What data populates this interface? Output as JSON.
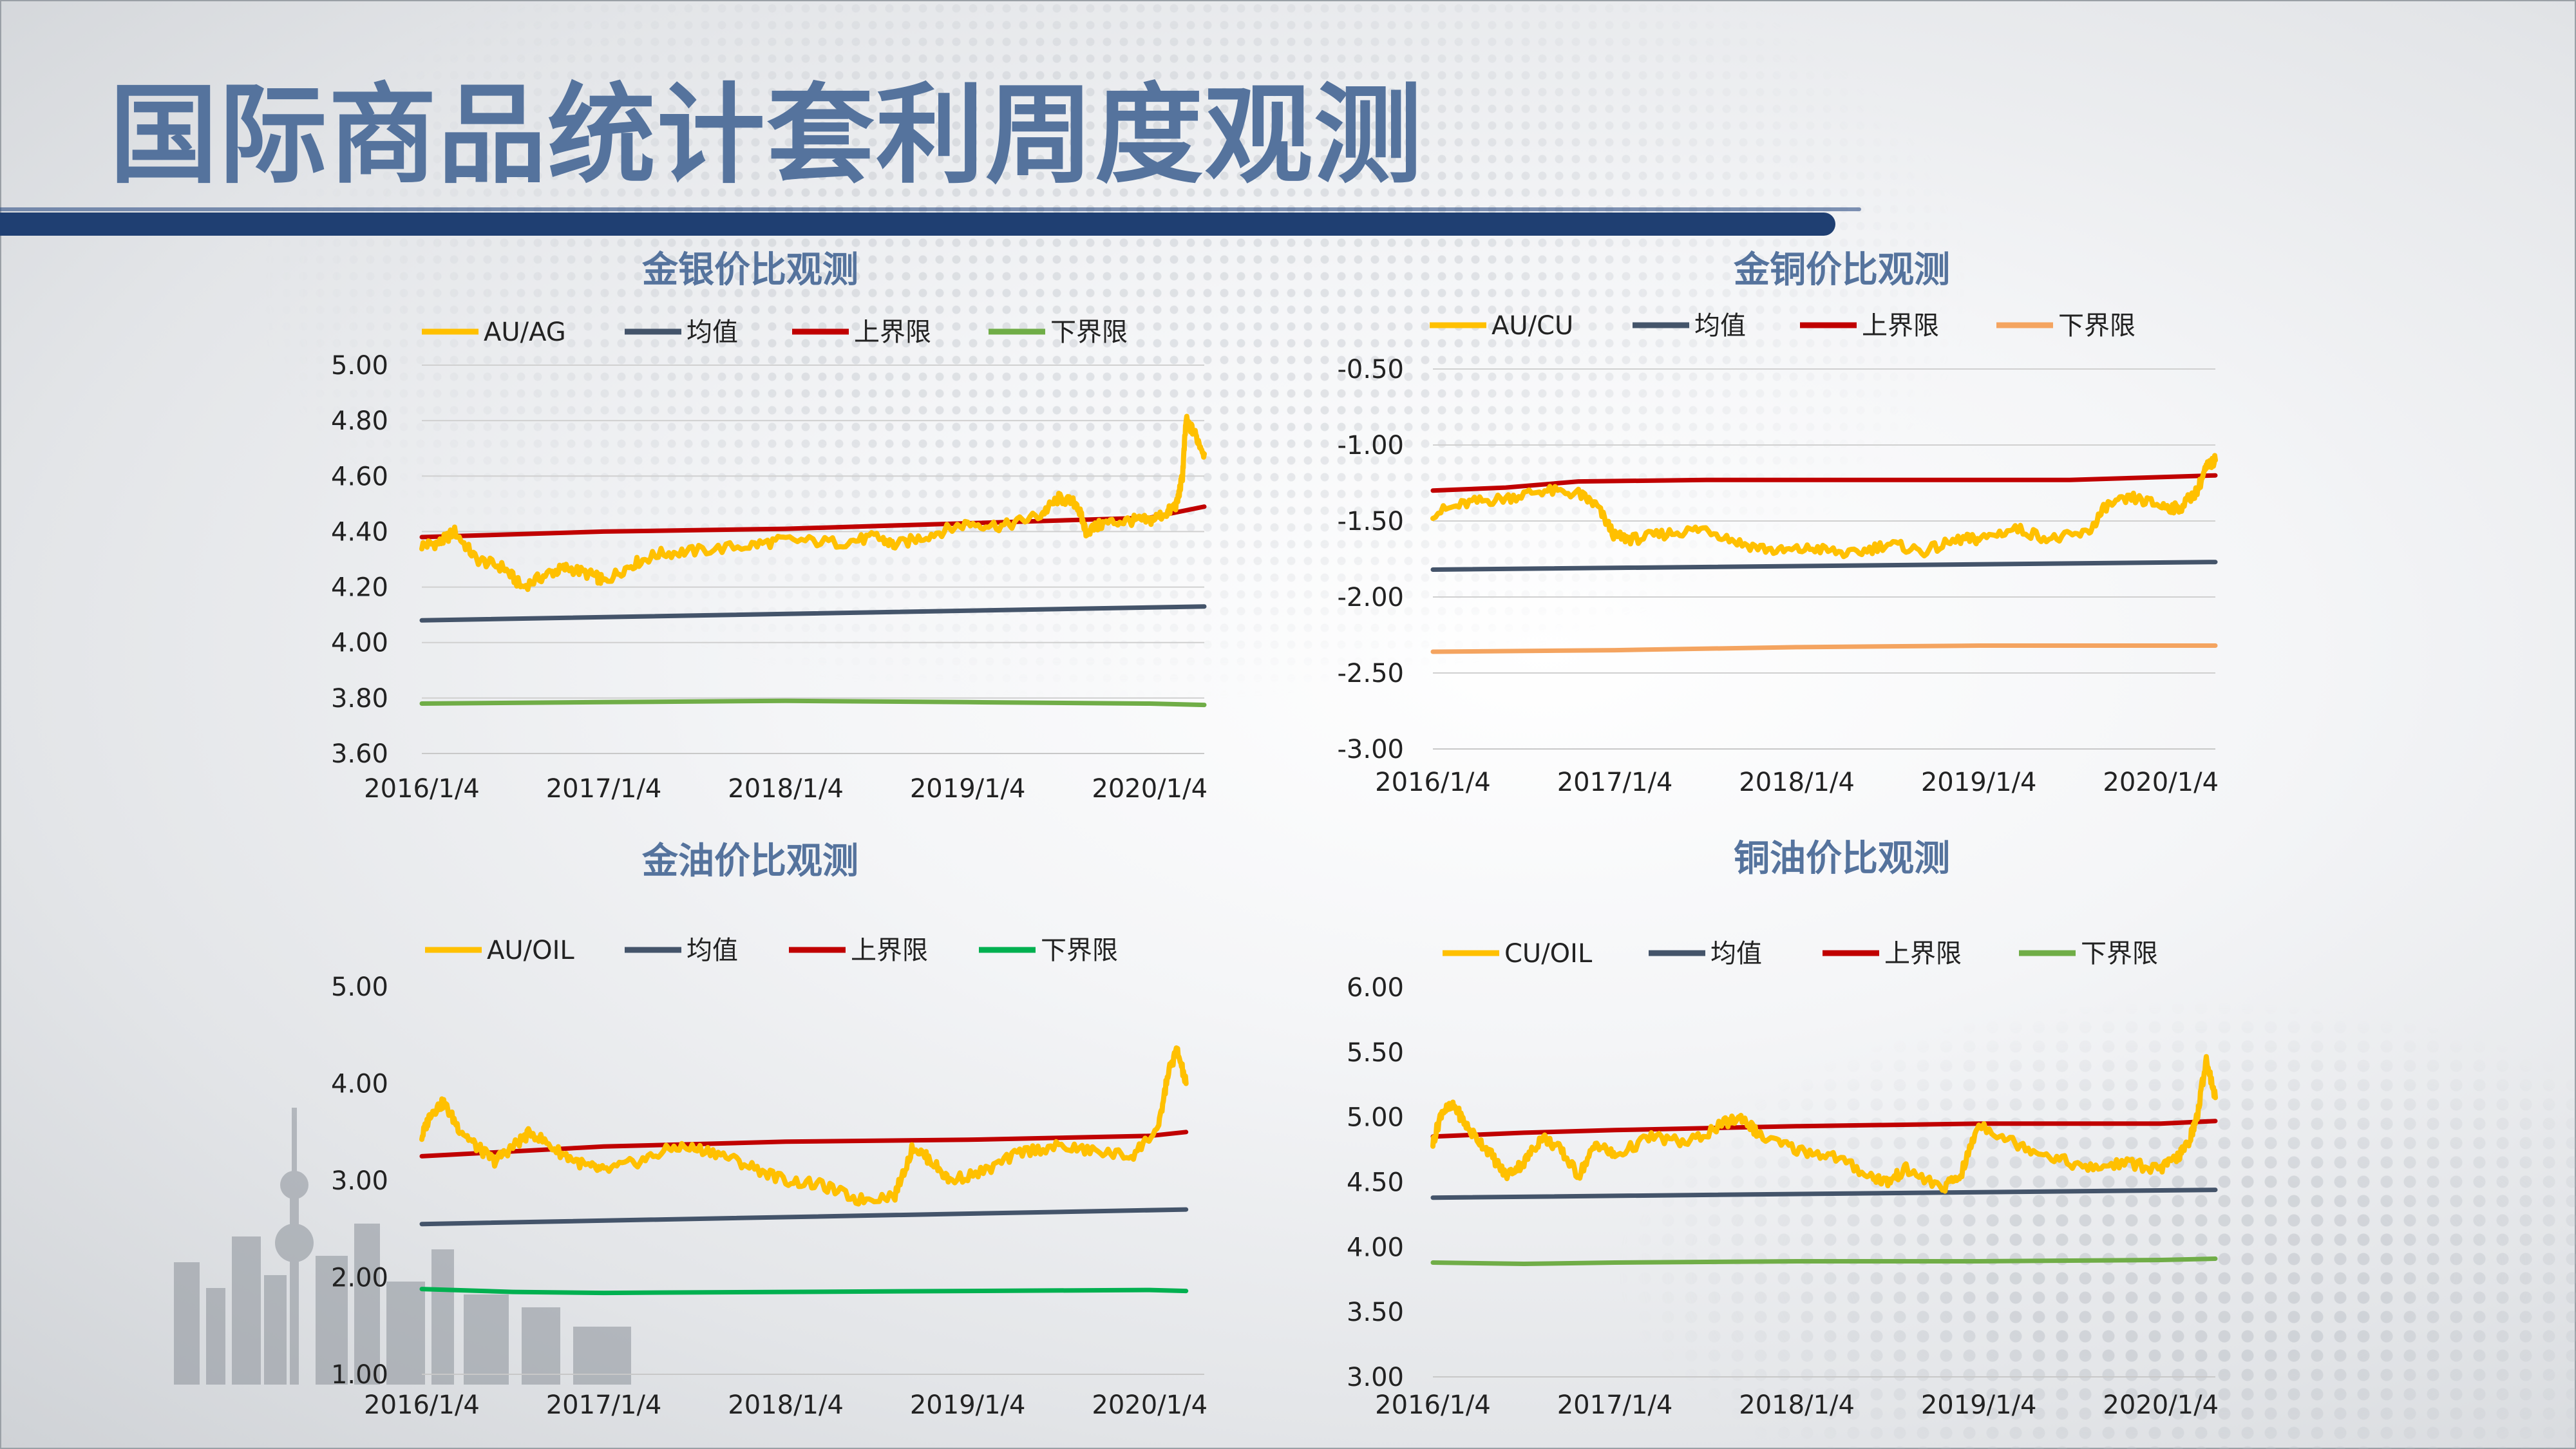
{
  "page": {
    "title": "国际商品统计套利周度观测"
  },
  "colors": {
    "title": "#55739d",
    "bar": "#1f3f72"
  },
  "chart_data": [
    {
      "id": "gold-silver",
      "type": "line",
      "title": "金银价比观测",
      "x_labels": [
        "2016/1/4",
        "2017/1/4",
        "2018/1/4",
        "2019/1/4",
        "2020/1/4"
      ],
      "x_range": [
        0,
        4.3
      ],
      "ylim": [
        3.6,
        5.0
      ],
      "y_ticks": [
        "5.00",
        "4.80",
        "4.60",
        "4.40",
        "4.20",
        "4.00",
        "3.80",
        "3.60"
      ],
      "grid": true,
      "legend_position": "top",
      "series": [
        {
          "name": "AU/AG",
          "color": "#ffc000",
          "noisy": true,
          "x": [
            0,
            0.1,
            0.18,
            0.3,
            0.45,
            0.55,
            0.7,
            0.8,
            0.95,
            1.0,
            1.15,
            1.3,
            1.5,
            1.8,
            2.0,
            2.3,
            2.5,
            2.6,
            2.8,
            3.0,
            3.2,
            3.4,
            3.5,
            3.6,
            3.65,
            3.75,
            3.9,
            4.0,
            4.1,
            4.15,
            4.18,
            4.2,
            4.25,
            4.3
          ],
          "y": [
            4.35,
            4.36,
            4.4,
            4.3,
            4.27,
            4.2,
            4.25,
            4.27,
            4.24,
            4.22,
            4.28,
            4.32,
            4.33,
            4.35,
            4.37,
            4.36,
            4.38,
            4.35,
            4.39,
            4.43,
            4.42,
            4.46,
            4.52,
            4.5,
            4.4,
            4.43,
            4.44,
            4.44,
            4.47,
            4.5,
            4.6,
            4.8,
            4.75,
            4.68
          ]
        },
        {
          "name": "均值",
          "color": "#44546a",
          "x": [
            0,
            4.3
          ],
          "y": [
            4.08,
            4.13
          ]
        },
        {
          "name": "上界限",
          "color": "#c00000",
          "x": [
            0,
            1.0,
            2.0,
            3.0,
            4.0,
            4.3
          ],
          "y": [
            4.38,
            4.4,
            4.41,
            4.43,
            4.45,
            4.49
          ]
        },
        {
          "name": "下界限",
          "color": "#70ad47",
          "x": [
            0,
            1.0,
            2.0,
            3.0,
            4.0,
            4.3
          ],
          "y": [
            3.78,
            3.785,
            3.79,
            3.785,
            3.78,
            3.775
          ]
        }
      ]
    },
    {
      "id": "gold-copper",
      "type": "line",
      "title": "金铜价比观测",
      "x_labels": [
        "2016/1/4",
        "2017/1/4",
        "2018/1/4",
        "2019/1/4",
        "2020/1/4"
      ],
      "x_range": [
        0,
        4.3
      ],
      "ylim": [
        -3.0,
        -0.5
      ],
      "y_ticks": [
        "-0.50",
        "-1.00",
        "-1.50",
        "-2.00",
        "-2.50",
        "-3.00"
      ],
      "grid": true,
      "legend_position": "top",
      "series": [
        {
          "name": "AU/CU",
          "color": "#ffc000",
          "noisy": true,
          "x": [
            0,
            0.2,
            0.4,
            0.6,
            0.8,
            0.9,
            1.0,
            1.1,
            1.3,
            1.5,
            1.7,
            1.9,
            2.1,
            2.3,
            2.5,
            2.7,
            2.9,
            3.0,
            3.2,
            3.4,
            3.6,
            3.7,
            3.85,
            4.0,
            4.1,
            4.2,
            4.25,
            4.3
          ],
          "y": [
            -1.45,
            -1.38,
            -1.35,
            -1.3,
            -1.32,
            -1.4,
            -1.6,
            -1.62,
            -1.58,
            -1.55,
            -1.65,
            -1.7,
            -1.68,
            -1.72,
            -1.65,
            -1.7,
            -1.62,
            -1.62,
            -1.55,
            -1.62,
            -1.58,
            -1.4,
            -1.35,
            -1.4,
            -1.42,
            -1.3,
            -1.15,
            -1.1
          ]
        },
        {
          "name": "均值",
          "color": "#44546a",
          "x": [
            0,
            4.3
          ],
          "y": [
            -1.82,
            -1.77
          ]
        },
        {
          "name": "上界限",
          "color": "#c00000",
          "x": [
            0,
            0.4,
            0.8,
            1.5,
            2.5,
            3.5,
            4.3
          ],
          "y": [
            -1.3,
            -1.28,
            -1.24,
            -1.23,
            -1.23,
            -1.23,
            -1.2
          ]
        },
        {
          "name": "下界限",
          "color": "#f4a460",
          "x": [
            0,
            1.0,
            2.0,
            3.0,
            4.3
          ],
          "y": [
            -2.36,
            -2.35,
            -2.33,
            -2.32,
            -2.32
          ]
        }
      ]
    },
    {
      "id": "gold-oil",
      "type": "line",
      "title": "金油价比观测",
      "x_labels": [
        "2016/1/4",
        "2017/1/4",
        "2018/1/4",
        "2019/1/4",
        "2020/1/4"
      ],
      "x_range": [
        0,
        4.3
      ],
      "ylim": [
        1.0,
        5.0
      ],
      "y_ticks": [
        "5.00",
        "4.00",
        "3.00",
        "2.00",
        "1.00"
      ],
      "grid": false,
      "legend_position": "top",
      "series": [
        {
          "name": "AU/OIL",
          "color": "#ffc000",
          "noisy": true,
          "x": [
            0,
            0.05,
            0.12,
            0.2,
            0.3,
            0.4,
            0.5,
            0.6,
            0.75,
            0.9,
            1.0,
            1.2,
            1.4,
            1.6,
            1.8,
            2.0,
            2.2,
            2.4,
            2.6,
            2.7,
            2.8,
            2.9,
            3.1,
            3.3,
            3.5,
            3.7,
            3.9,
            4.05,
            4.1,
            4.15,
            4.2
          ],
          "y": [
            3.45,
            3.7,
            3.8,
            3.55,
            3.35,
            3.2,
            3.35,
            3.5,
            3.3,
            3.15,
            3.1,
            3.2,
            3.35,
            3.3,
            3.15,
            3.0,
            2.95,
            2.8,
            2.85,
            3.35,
            3.2,
            3.0,
            3.1,
            3.3,
            3.35,
            3.3,
            3.25,
            3.55,
            4.1,
            4.35,
            4.0
          ]
        },
        {
          "name": "均值",
          "color": "#44546a",
          "x": [
            0,
            4.2
          ],
          "y": [
            2.55,
            2.7
          ]
        },
        {
          "name": "上界限",
          "color": "#c00000",
          "x": [
            0,
            0.5,
            1.0,
            2.0,
            3.0,
            4.0,
            4.2
          ],
          "y": [
            3.25,
            3.3,
            3.35,
            3.4,
            3.42,
            3.46,
            3.5
          ]
        },
        {
          "name": "下界限",
          "color": "#00b050",
          "x": [
            0,
            0.5,
            1.0,
            2.0,
            3.0,
            4.0,
            4.2
          ],
          "y": [
            1.88,
            1.85,
            1.84,
            1.85,
            1.86,
            1.87,
            1.86
          ]
        }
      ]
    },
    {
      "id": "copper-oil",
      "type": "line",
      "title": "铜油价比观测",
      "x_labels": [
        "2016/1/4",
        "2017/1/4",
        "2018/1/4",
        "2019/1/4",
        "2020/1/4"
      ],
      "x_range": [
        0,
        4.3
      ],
      "ylim": [
        3.0,
        6.0
      ],
      "y_ticks": [
        "6.00",
        "5.50",
        "5.00",
        "4.50",
        "4.00",
        "3.50",
        "3.00"
      ],
      "grid": false,
      "legend_position": "top",
      "series": [
        {
          "name": "CU/OIL",
          "color": "#ffc000",
          "noisy": true,
          "x": [
            0,
            0.05,
            0.12,
            0.2,
            0.3,
            0.4,
            0.5,
            0.6,
            0.7,
            0.8,
            0.9,
            1.0,
            1.2,
            1.4,
            1.6,
            1.7,
            1.8,
            2.0,
            2.2,
            2.4,
            2.5,
            2.6,
            2.8,
            2.9,
            3.0,
            3.2,
            3.4,
            3.6,
            3.8,
            4.0,
            4.1,
            4.15,
            4.2,
            4.25,
            4.3
          ],
          "y": [
            4.8,
            5.05,
            5.08,
            4.9,
            4.75,
            4.55,
            4.65,
            4.85,
            4.75,
            4.55,
            4.8,
            4.7,
            4.85,
            4.8,
            4.95,
            5.0,
            4.85,
            4.75,
            4.7,
            4.55,
            4.5,
            4.6,
            4.45,
            4.55,
            4.95,
            4.8,
            4.7,
            4.6,
            4.65,
            4.6,
            4.7,
            4.8,
            5.0,
            5.45,
            5.15
          ]
        },
        {
          "name": "均值",
          "color": "#44546a",
          "x": [
            0,
            4.3
          ],
          "y": [
            4.38,
            4.44
          ]
        },
        {
          "name": "上界限",
          "color": "#c00000",
          "x": [
            0,
            0.5,
            1.0,
            2.0,
            3.0,
            4.0,
            4.3
          ],
          "y": [
            4.85,
            4.88,
            4.9,
            4.93,
            4.95,
            4.95,
            4.97
          ]
        },
        {
          "name": "下界限",
          "color": "#70ad47",
          "x": [
            0,
            0.5,
            1.0,
            2.0,
            3.0,
            4.0,
            4.3
          ],
          "y": [
            3.88,
            3.87,
            3.88,
            3.89,
            3.89,
            3.9,
            3.91
          ]
        }
      ]
    }
  ]
}
